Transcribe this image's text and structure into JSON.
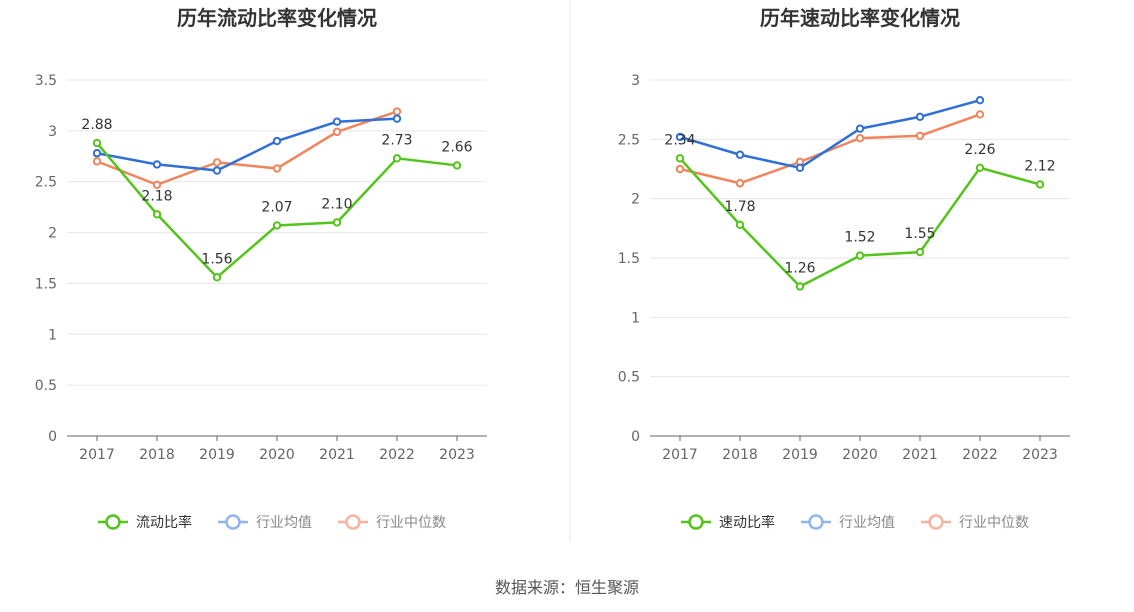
{
  "source_text": "数据来源：恒生聚源",
  "colors": {
    "green": "#52c41a",
    "blue": "#2f6fd6",
    "orange": "#f0845c",
    "blue_legend": "#91b5ef",
    "orange_legend": "#f7b3a0",
    "grid": "#e6e6e6",
    "axis": "#666666"
  },
  "chart_data": [
    {
      "type": "line",
      "title": "历年流动比率变化情况",
      "categories": [
        "2017",
        "2018",
        "2019",
        "2020",
        "2021",
        "2022",
        "2023"
      ],
      "ylim": [
        0,
        3.5
      ],
      "yticks": [
        "0",
        "0.5",
        "1",
        "1.5",
        "2",
        "2.5",
        "3",
        "3.5"
      ],
      "grid": true,
      "legend_position": "bottom",
      "series": [
        {
          "name": "流动比率",
          "color": "green",
          "values": [
            2.88,
            2.18,
            1.56,
            2.07,
            2.1,
            2.73,
            2.66
          ],
          "labels": [
            "2.88",
            "2.18",
            "1.56",
            "2.07",
            "2.10",
            "2.73",
            "2.66"
          ]
        },
        {
          "name": "行业均值",
          "color": "blue",
          "values": [
            2.78,
            2.67,
            2.61,
            2.9,
            3.09,
            3.12,
            null
          ]
        },
        {
          "name": "行业中位数",
          "color": "orange",
          "values": [
            2.7,
            2.47,
            2.69,
            2.63,
            2.99,
            3.19,
            null
          ]
        }
      ]
    },
    {
      "type": "line",
      "title": "历年速动比率变化情况",
      "categories": [
        "2017",
        "2018",
        "2019",
        "2020",
        "2021",
        "2022",
        "2023"
      ],
      "ylim": [
        0,
        3
      ],
      "yticks": [
        "0",
        "0.5",
        "1",
        "1.5",
        "2",
        "2.5",
        "3"
      ],
      "grid": true,
      "legend_position": "bottom",
      "series": [
        {
          "name": "速动比率",
          "color": "green",
          "values": [
            2.34,
            1.78,
            1.26,
            1.52,
            1.55,
            2.26,
            2.12
          ],
          "labels": [
            "2.34",
            "1.78",
            "1.26",
            "1.52",
            "1.55",
            "2.26",
            "2.12"
          ]
        },
        {
          "name": "行业均值",
          "color": "blue",
          "values": [
            2.52,
            2.37,
            2.26,
            2.59,
            2.69,
            2.83,
            null
          ]
        },
        {
          "name": "行业中位数",
          "color": "orange",
          "values": [
            2.25,
            2.13,
            2.31,
            2.51,
            2.53,
            2.71,
            null
          ]
        }
      ]
    }
  ]
}
